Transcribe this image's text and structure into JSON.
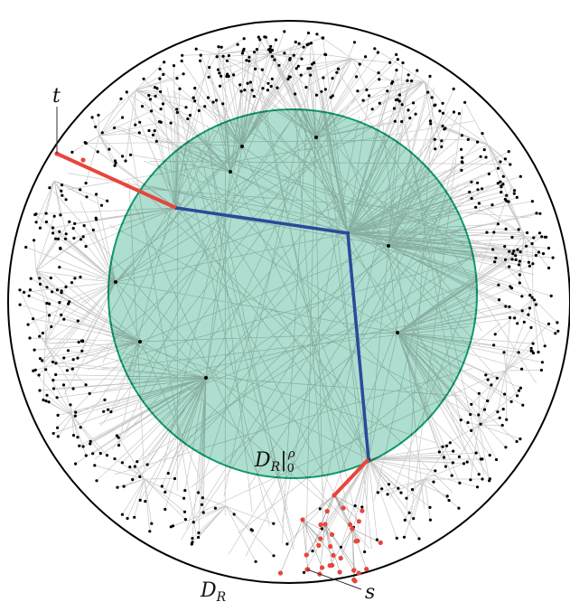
{
  "labels": {
    "target": "t",
    "source": "s",
    "inner_disk": {
      "symbol": "D",
      "subscript": "R",
      "bar": "|",
      "lower": "0",
      "upper": "ρ"
    },
    "outer_disk": {
      "symbol": "D",
      "subscript": "R"
    }
  }
}
